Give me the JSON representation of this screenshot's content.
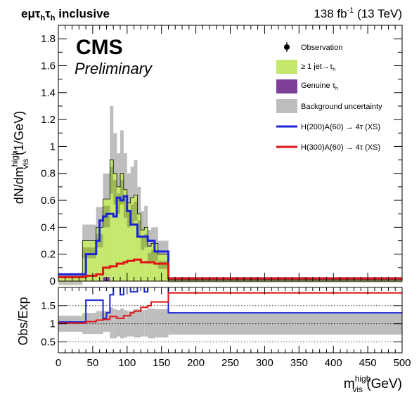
{
  "header": {
    "channel_main": "eμτ",
    "channel_sub1": "h",
    "channel_tau2": "τ",
    "channel_sub2": "h",
    "channel_suffix": " inclusive",
    "lumi_value": "138 fb",
    "lumi_exp": "-1",
    "lumi_energy": " (13 TeV)",
    "cms": "CMS",
    "preliminary": "Preliminary"
  },
  "chart_data": [
    {
      "type": "bar",
      "panel": "main",
      "ylabel": "dN/dm^high_vis (1/GeV)",
      "ylabel_parts": {
        "a": "dN/dm",
        "sup": "high",
        "sub": "vis",
        "unit": " (1/GeV)"
      },
      "xlim": [
        0,
        500
      ],
      "ylim": [
        0,
        1.9
      ],
      "yticks": [
        0,
        0.2,
        0.4,
        0.6,
        0.8,
        1,
        1.2,
        1.4,
        1.6,
        1.8
      ],
      "ytick_labels": [
        "0",
        "0.2",
        "0.4",
        "0.6",
        "0.8",
        "1",
        "1.2",
        "1.4",
        "1.6",
        "1.8"
      ],
      "bin_edges": [
        0,
        35,
        40,
        45,
        50,
        55,
        60,
        65,
        70,
        75,
        80,
        85,
        90,
        95,
        100,
        105,
        110,
        115,
        120,
        125,
        130,
        135,
        140,
        145,
        160,
        500
      ],
      "series": [
        {
          "name": "≥ 1 jet→τ_h",
          "color": "#c5e86c",
          "values": [
            0.03,
            0.3,
            0.3,
            0.3,
            0.3,
            0.4,
            0.4,
            0.58,
            0.58,
            0.9,
            0.8,
            0.7,
            0.8,
            0.68,
            0.58,
            0.62,
            0.64,
            0.5,
            0.38,
            0.4,
            0.26,
            0.28,
            0.28,
            0.2,
            0.01
          ]
        },
        {
          "name": "Genuine τ_h",
          "color": "#7e3f98",
          "values": [
            0.0,
            0.0,
            0.0,
            0.0,
            0.0,
            0.0,
            0.0,
            0.03,
            0.03,
            0.0,
            0.0,
            0.0,
            0.0,
            0.0,
            0.0,
            0.0,
            0.0,
            0.0,
            0.0,
            0.0,
            0.0,
            0.0,
            0.0,
            0.0,
            0.0
          ]
        },
        {
          "name": "Background uncertainty",
          "color": "#bdbdbd",
          "type": "band",
          "down": [
            0.0,
            0.22,
            0.22,
            0.22,
            0.22,
            0.3,
            0.3,
            0.45,
            0.45,
            0.7,
            0.62,
            0.55,
            0.62,
            0.52,
            0.45,
            0.48,
            0.5,
            0.38,
            0.28,
            0.3,
            0.18,
            0.2,
            0.2,
            0.14,
            0.0
          ],
          "up": [
            0.06,
            0.42,
            0.42,
            0.42,
            0.42,
            0.55,
            0.55,
            0.8,
            0.8,
            1.3,
            1.1,
            0.95,
            1.12,
            0.95,
            0.8,
            0.85,
            0.9,
            0.7,
            0.52,
            0.56,
            0.38,
            0.4,
            0.4,
            0.3,
            0.03
          ]
        },
        {
          "name": "H(200)A(60) → 4τ (XS)",
          "color": "#1a24d6",
          "type": "step",
          "values": [
            0.05,
            0.05,
            0.2,
            0.2,
            0.2,
            0.3,
            0.45,
            0.48,
            0.5,
            0.5,
            0.48,
            0.62,
            0.6,
            0.63,
            0.52,
            0.42,
            0.42,
            0.33,
            0.33,
            0.33,
            0.3,
            0.3,
            0.22,
            0.22,
            0.02
          ]
        },
        {
          "name": "H(300)A(60) → 4τ (XS)",
          "color": "#e01515",
          "type": "step",
          "values": [
            0.03,
            0.03,
            0.04,
            0.04,
            0.04,
            0.05,
            0.05,
            0.1,
            0.1,
            0.11,
            0.11,
            0.13,
            0.13,
            0.14,
            0.15,
            0.15,
            0.16,
            0.16,
            0.14,
            0.14,
            0.14,
            0.14,
            0.13,
            0.13,
            0.02
          ]
        }
      ],
      "observation": {
        "name": "Observation"
      },
      "legend_position": "top-right"
    },
    {
      "type": "line",
      "panel": "ratio",
      "ylabel": "Obs/Exp",
      "xlabel": "m^high_vis (GeV)",
      "xlabel_parts": {
        "a": "m",
        "sup": "high",
        "sub": "vis",
        "unit": " (GeV)"
      },
      "xlim": [
        0,
        500
      ],
      "ylim": [
        0.2,
        2.0
      ],
      "yticks": [
        0.5,
        1,
        1.5
      ],
      "ytick_labels": [
        "0.5",
        "1",
        "1.5"
      ],
      "xticks": [
        0,
        50,
        100,
        150,
        200,
        250,
        300,
        350,
        400,
        450,
        500
      ],
      "xtick_labels": [
        "0",
        "50",
        "100",
        "150",
        "200",
        "250",
        "300",
        "350",
        "400",
        "450",
        "500"
      ],
      "reference_lines": [
        0.5,
        1,
        1.5
      ],
      "bin_edges": [
        0,
        35,
        40,
        45,
        50,
        55,
        60,
        65,
        70,
        75,
        80,
        85,
        90,
        95,
        100,
        105,
        110,
        115,
        120,
        125,
        130,
        135,
        140,
        145,
        160,
        500
      ],
      "band_down": [
        0.78,
        0.72,
        0.72,
        0.72,
        0.72,
        0.72,
        0.72,
        0.78,
        0.78,
        0.6,
        0.6,
        0.65,
        0.6,
        0.62,
        0.65,
        0.65,
        0.62,
        0.62,
        0.65,
        0.65,
        0.6,
        0.6,
        0.62,
        0.62,
        0.7
      ],
      "band_up": [
        1.22,
        1.3,
        1.3,
        1.3,
        1.3,
        1.35,
        1.35,
        1.35,
        1.35,
        1.45,
        1.4,
        1.38,
        1.42,
        1.38,
        1.35,
        1.35,
        1.4,
        1.4,
        1.38,
        1.38,
        1.42,
        1.42,
        1.4,
        1.4,
        1.3
      ],
      "series": [
        {
          "name": "H(200)A(60) → 4τ (XS)",
          "color": "#1a24d6",
          "values": [
            1.05,
            1.05,
            1.65,
            1.65,
            1.65,
            1.65,
            1.65,
            1.15,
            1.3,
            1.8,
            2.05,
            2.05,
            1.8,
            2.05,
            2.05,
            1.88,
            1.88,
            2.05,
            2.05,
            1.88,
            2.05,
            2.05,
            2.05,
            2.05,
            1.3
          ]
        },
        {
          "name": "H(300)A(60) → 4τ (XS)",
          "color": "#e01515",
          "values": [
            1.02,
            1.02,
            1.06,
            1.06,
            1.06,
            1.1,
            1.1,
            1.12,
            1.12,
            1.2,
            1.2,
            1.15,
            1.15,
            1.22,
            1.22,
            1.3,
            1.35,
            1.35,
            1.45,
            1.45,
            1.5,
            1.6,
            1.6,
            1.6,
            1.85
          ]
        }
      ]
    }
  ]
}
